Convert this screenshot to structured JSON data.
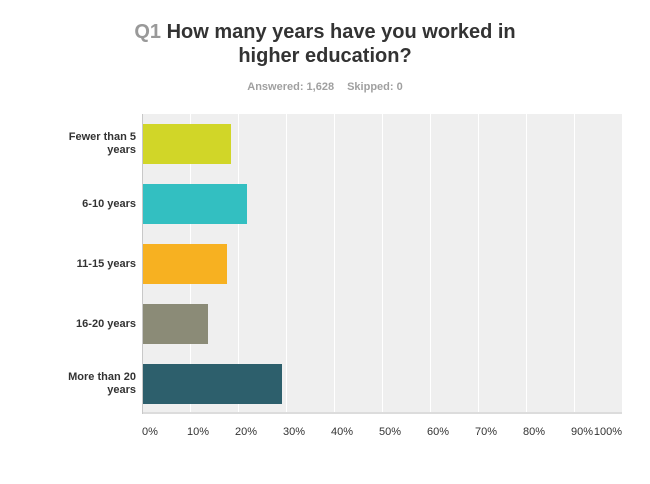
{
  "question": {
    "number": "Q1",
    "title_line1": "How many years have you worked in",
    "title_line2": "higher education?",
    "answered": "Answered: 1,628",
    "skipped": "Skipped: 0"
  },
  "chart_data": {
    "type": "bar",
    "orientation": "horizontal",
    "title": "Q1 How many years have you worked in higher education?",
    "subtitle": "Answered: 1,628 Skipped: 0",
    "categories": [
      "Fewer than 5 years",
      "6-10 years",
      "11-15 years",
      "16-20 years",
      "More than 20 years"
    ],
    "category_labels": [
      [
        "Fewer than 5",
        "years"
      ],
      [
        "6-10 years"
      ],
      [
        "11-15 years"
      ],
      [
        "16-20 years"
      ],
      [
        "More than 20",
        "years"
      ]
    ],
    "values": [
      18.4,
      21.6,
      17.5,
      13.6,
      28.9
    ],
    "colors": [
      "#d1d628",
      "#33bfc1",
      "#f7b121",
      "#8b8b77",
      "#2d5f6c"
    ],
    "xlabel": "",
    "ylabel": "",
    "xlim": [
      0,
      100
    ],
    "xticks": [
      "0%",
      "10%",
      "20%",
      "30%",
      "40%",
      "50%",
      "60%",
      "70%",
      "80%",
      "90%",
      "100%"
    ],
    "grid": true,
    "legend": "none"
  }
}
